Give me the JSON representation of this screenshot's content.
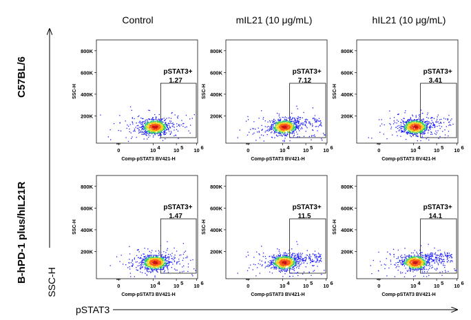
{
  "chart_data": {
    "type": "scatter",
    "columns": [
      "Control",
      "mIL21 (10 μg/mL)",
      "hIL21 (10 μg/mL)"
    ],
    "rows": [
      "C57BL/6",
      "B-hPD-1 plus/hIL21R"
    ],
    "outer_axes": {
      "x": "pSTAT3",
      "y": "SSC-H"
    },
    "panel_axes": {
      "x": "Comp-pSTAT3 BV421-H",
      "y": "SSC-H"
    },
    "x_ticks": [
      "0",
      "10",
      "10",
      "10"
    ],
    "x_tick_exponents": [
      "",
      "4",
      "5",
      "6"
    ],
    "y_ticks": [
      "200K",
      "400K",
      "600K",
      "800K"
    ],
    "y_tick_values": [
      200000,
      400000,
      600000,
      800000
    ],
    "gate_label": "pSTAT3+",
    "gates": [
      {
        "row": "C57BL/6",
        "column": "Control",
        "value": "1.27"
      },
      {
        "row": "C57BL/6",
        "column": "mIL21 (10 μg/mL)",
        "value": "7.12"
      },
      {
        "row": "C57BL/6",
        "column": "hIL21 (10 μg/mL)",
        "value": "3.41"
      },
      {
        "row": "B-hPD-1 plus/hIL21R",
        "column": "Control",
        "value": "1.47"
      },
      {
        "row": "B-hPD-1 plus/hIL21R",
        "column": "mIL21 (10 μg/mL)",
        "value": "11.5"
      },
      {
        "row": "B-hPD-1 plus/hIL21R",
        "column": "hIL21 (10 μg/mL)",
        "value": "14.1"
      }
    ],
    "colors": {
      "low": "#1a1aff",
      "mid": "#27c96a",
      "high_mid": "#f2d21c",
      "high": "#ff5a1a",
      "peak": "#c81414"
    }
  }
}
